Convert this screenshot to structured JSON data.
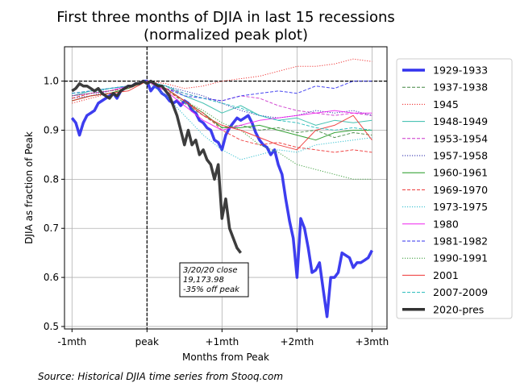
{
  "chart_data": {
    "type": "line",
    "title_line1": "First three months of DJIA in last 15 recessions",
    "title_line2": "(normalized peak plot)",
    "xlabel": "Months from Peak",
    "ylabel": "DJIA as fraction of Peak",
    "xlim": [
      -1.1,
      3.2
    ],
    "ylim": [
      0.495,
      1.07
    ],
    "xticks": [
      -1,
      0,
      1,
      2,
      3
    ],
    "xtick_labels": [
      "-1mth",
      "peak",
      "+1mth",
      "+2mth",
      "+3mth"
    ],
    "yticks": [
      0.5,
      0.6,
      0.7,
      0.8,
      0.9,
      1.0
    ],
    "ytick_labels": [
      "0.5",
      "0.6",
      "0.7",
      "0.8",
      "0.9",
      "1.0"
    ],
    "grid": true,
    "reference_lines": {
      "horizontal_y": 1.0,
      "vertical_x": 0
    },
    "legend_position": "right",
    "annotation": {
      "lines": [
        "3/20/20 close",
        "19,173.98",
        "-35% off peak"
      ],
      "anchor_x": 0.4,
      "anchor_y": 0.63
    },
    "source": "Source: Historical DJIA time series from Stooq.com",
    "series": [
      {
        "name": "1929-1933",
        "color": "#3333ee",
        "style": "solid",
        "width": 3.5,
        "x": [
          -1.0,
          -0.95,
          -0.9,
          -0.85,
          -0.8,
          -0.75,
          -0.7,
          -0.65,
          -0.6,
          -0.55,
          -0.5,
          -0.45,
          -0.4,
          -0.35,
          -0.3,
          -0.25,
          -0.2,
          -0.15,
          -0.1,
          -0.05,
          0.0,
          0.05,
          0.1,
          0.15,
          0.2,
          0.25,
          0.3,
          0.35,
          0.4,
          0.45,
          0.5,
          0.55,
          0.6,
          0.65,
          0.7,
          0.75,
          0.8,
          0.85,
          0.9,
          0.95,
          1.0,
          1.05,
          1.1,
          1.15,
          1.2,
          1.25,
          1.3,
          1.35,
          1.4,
          1.45,
          1.5,
          1.55,
          1.6,
          1.65,
          1.7,
          1.75,
          1.8,
          1.85,
          1.9,
          1.95,
          2.0,
          2.05,
          2.1,
          2.15,
          2.2,
          2.25,
          2.3,
          2.35,
          2.4,
          2.45,
          2.5,
          2.55,
          2.6,
          2.65,
          2.7,
          2.75,
          2.8,
          2.85,
          2.9,
          2.95,
          3.0
        ],
        "y": [
          0.925,
          0.915,
          0.89,
          0.915,
          0.93,
          0.935,
          0.94,
          0.955,
          0.96,
          0.965,
          0.97,
          0.975,
          0.965,
          0.98,
          0.985,
          0.99,
          0.99,
          0.995,
          0.995,
          1.0,
          1.0,
          0.98,
          0.99,
          0.985,
          0.975,
          0.97,
          0.96,
          0.955,
          0.96,
          0.95,
          0.96,
          0.955,
          0.94,
          0.935,
          0.92,
          0.915,
          0.905,
          0.9,
          0.88,
          0.875,
          0.86,
          0.89,
          0.905,
          0.915,
          0.925,
          0.92,
          0.925,
          0.93,
          0.915,
          0.895,
          0.88,
          0.87,
          0.865,
          0.85,
          0.86,
          0.83,
          0.81,
          0.76,
          0.715,
          0.68,
          0.6,
          0.72,
          0.7,
          0.66,
          0.61,
          0.615,
          0.63,
          0.575,
          0.52,
          0.6,
          0.6,
          0.61,
          0.65,
          0.645,
          0.64,
          0.62,
          0.63,
          0.63,
          0.635,
          0.64,
          0.655
        ]
      },
      {
        "name": "1937-1938",
        "color": "#448844",
        "style": "dashed",
        "width": 1,
        "x": [
          -1.0,
          -0.75,
          -0.5,
          -0.25,
          0.0,
          0.25,
          0.5,
          0.75,
          1.0,
          1.25,
          1.5,
          1.75,
          2.0,
          2.25,
          2.5,
          2.75,
          3.0
        ],
        "y": [
          0.96,
          0.97,
          0.975,
          0.985,
          1.0,
          0.985,
          0.955,
          0.93,
          0.905,
          0.91,
          0.9,
          0.905,
          0.895,
          0.9,
          0.885,
          0.895,
          0.89
        ]
      },
      {
        "name": "1945",
        "color": "#ee2222",
        "style": "dotted",
        "width": 1,
        "x": [
          -1.0,
          -0.75,
          -0.5,
          -0.25,
          0.0,
          0.25,
          0.5,
          0.75,
          1.0,
          1.25,
          1.5,
          1.75,
          2.0,
          2.25,
          2.5,
          2.75,
          3.0
        ],
        "y": [
          0.955,
          0.965,
          0.975,
          0.985,
          1.0,
          0.995,
          0.985,
          0.99,
          1.0,
          1.005,
          1.01,
          1.02,
          1.03,
          1.03,
          1.035,
          1.045,
          1.04
        ]
      },
      {
        "name": "1948-1949",
        "color": "#33bbaa",
        "style": "solid",
        "width": 1,
        "x": [
          -1.0,
          -0.75,
          -0.5,
          -0.25,
          0.0,
          0.25,
          0.5,
          0.75,
          1.0,
          1.25,
          1.5,
          1.75,
          2.0,
          2.25,
          2.5,
          2.75,
          3.0
        ],
        "y": [
          0.97,
          0.98,
          0.985,
          0.99,
          1.0,
          0.99,
          0.97,
          0.955,
          0.935,
          0.95,
          0.93,
          0.92,
          0.925,
          0.91,
          0.92,
          0.915,
          0.92
        ]
      },
      {
        "name": "1953-1954",
        "color": "#cc33cc",
        "style": "dashed",
        "width": 1,
        "x": [
          -1.0,
          -0.75,
          -0.5,
          -0.25,
          0.0,
          0.25,
          0.5,
          0.75,
          1.0,
          1.25,
          1.5,
          1.75,
          2.0,
          2.25,
          2.5,
          2.75,
          3.0
        ],
        "y": [
          0.975,
          0.98,
          0.985,
          0.99,
          1.0,
          0.985,
          0.975,
          0.965,
          0.96,
          0.97,
          0.965,
          0.95,
          0.94,
          0.935,
          0.93,
          0.935,
          0.93
        ]
      },
      {
        "name": "1957-1958",
        "color": "#2222aa",
        "style": "dotted",
        "width": 1,
        "x": [
          -1.0,
          -0.75,
          -0.5,
          -0.25,
          0.0,
          0.25,
          0.5,
          0.75,
          1.0,
          1.25,
          1.5,
          1.75,
          2.0,
          2.25,
          2.5,
          2.75,
          3.0
        ],
        "y": [
          0.965,
          0.97,
          0.98,
          0.99,
          1.0,
          0.99,
          0.98,
          0.97,
          0.955,
          0.94,
          0.93,
          0.925,
          0.93,
          0.94,
          0.935,
          0.94,
          0.93
        ]
      },
      {
        "name": "1960-1961",
        "color": "#229922",
        "style": "solid",
        "width": 1,
        "x": [
          -1.0,
          -0.75,
          -0.5,
          -0.25,
          0.0,
          0.25,
          0.5,
          0.75,
          1.0,
          1.25,
          1.5,
          1.75,
          2.0,
          2.25,
          2.5,
          2.75,
          3.0
        ],
        "y": [
          0.96,
          0.97,
          0.975,
          0.985,
          1.0,
          0.985,
          0.96,
          0.935,
          0.905,
          0.905,
          0.91,
          0.9,
          0.89,
          0.88,
          0.895,
          0.9,
          0.9
        ]
      },
      {
        "name": "1969-1970",
        "color": "#ee3333",
        "style": "dashed",
        "width": 1,
        "x": [
          -1.0,
          -0.75,
          -0.5,
          -0.25,
          0.0,
          0.25,
          0.5,
          0.75,
          1.0,
          1.25,
          1.5,
          1.75,
          2.0,
          2.25,
          2.5,
          2.75,
          3.0
        ],
        "y": [
          0.965,
          0.975,
          0.98,
          0.985,
          1.0,
          0.98,
          0.96,
          0.935,
          0.9,
          0.88,
          0.87,
          0.875,
          0.865,
          0.86,
          0.855,
          0.86,
          0.855
        ]
      },
      {
        "name": "1973-1975",
        "color": "#22bbcc",
        "style": "dotted",
        "width": 1,
        "x": [
          -1.0,
          -0.75,
          -0.5,
          -0.25,
          0.0,
          0.25,
          0.5,
          0.75,
          1.0,
          1.25,
          1.5,
          1.75,
          2.0,
          2.25,
          2.5,
          2.75,
          3.0
        ],
        "y": [
          0.97,
          0.975,
          0.985,
          0.99,
          1.0,
          0.97,
          0.93,
          0.89,
          0.86,
          0.84,
          0.85,
          0.86,
          0.855,
          0.87,
          0.875,
          0.88,
          0.885
        ]
      },
      {
        "name": "1980",
        "color": "#ee22ee",
        "style": "solid",
        "width": 1,
        "x": [
          -1.0,
          -0.75,
          -0.5,
          -0.25,
          0.0,
          0.25,
          0.5,
          0.75,
          1.0,
          1.25,
          1.5,
          1.75,
          2.0,
          2.25,
          2.5,
          2.75,
          3.0
        ],
        "y": [
          0.97,
          0.975,
          0.98,
          0.99,
          1.0,
          0.98,
          0.95,
          0.92,
          0.9,
          0.91,
          0.92,
          0.925,
          0.93,
          0.935,
          0.94,
          0.935,
          0.935
        ]
      },
      {
        "name": "1981-1982",
        "color": "#3333ee",
        "style": "dashed",
        "width": 1,
        "x": [
          -1.0,
          -0.75,
          -0.5,
          -0.25,
          0.0,
          0.25,
          0.5,
          0.75,
          1.0,
          1.25,
          1.5,
          1.75,
          2.0,
          2.25,
          2.5,
          2.75,
          3.0
        ],
        "y": [
          0.975,
          0.98,
          0.985,
          0.99,
          1.0,
          0.985,
          0.97,
          0.965,
          0.96,
          0.97,
          0.975,
          0.98,
          0.975,
          0.99,
          0.985,
          1.0,
          1.0
        ]
      },
      {
        "name": "1990-1991",
        "color": "#339933",
        "style": "dotted",
        "width": 1,
        "x": [
          -1.0,
          -0.75,
          -0.5,
          -0.25,
          0.0,
          0.25,
          0.5,
          0.75,
          1.0,
          1.25,
          1.5,
          1.75,
          2.0,
          2.25,
          2.5,
          2.75,
          3.0
        ],
        "y": [
          0.97,
          0.975,
          0.98,
          0.985,
          1.0,
          0.985,
          0.96,
          0.94,
          0.915,
          0.9,
          0.87,
          0.855,
          0.83,
          0.82,
          0.81,
          0.8,
          0.8
        ]
      },
      {
        "name": "2001",
        "color": "#ee3333",
        "style": "solid",
        "width": 1,
        "x": [
          -1.0,
          -0.75,
          -0.5,
          -0.25,
          0.0,
          0.25,
          0.5,
          0.75,
          1.0,
          1.25,
          1.5,
          1.75,
          2.0,
          2.25,
          2.5,
          2.75,
          3.0
        ],
        "y": [
          0.96,
          0.97,
          0.975,
          0.98,
          1.0,
          0.985,
          0.96,
          0.93,
          0.91,
          0.9,
          0.885,
          0.87,
          0.86,
          0.9,
          0.91,
          0.93,
          0.88
        ]
      },
      {
        "name": "2007-2009",
        "color": "#22bbbb",
        "style": "dashed",
        "width": 1,
        "x": [
          -1.0,
          -0.75,
          -0.5,
          -0.25,
          0.0,
          0.25,
          0.5,
          0.75,
          1.0,
          1.25,
          1.5,
          1.75,
          2.0,
          2.25,
          2.5,
          2.75,
          3.0
        ],
        "y": [
          0.975,
          0.98,
          0.985,
          0.99,
          1.0,
          0.99,
          0.975,
          0.965,
          0.955,
          0.945,
          0.93,
          0.92,
          0.915,
          0.905,
          0.9,
          0.905,
          0.9
        ]
      },
      {
        "name": "2020-pres",
        "color": "#333333",
        "style": "solid",
        "width": 3.5,
        "x": [
          -1.0,
          -0.95,
          -0.9,
          -0.85,
          -0.8,
          -0.75,
          -0.7,
          -0.65,
          -0.6,
          -0.55,
          -0.5,
          -0.45,
          -0.4,
          -0.35,
          -0.3,
          -0.25,
          -0.2,
          -0.15,
          -0.1,
          -0.05,
          0.0,
          0.05,
          0.1,
          0.15,
          0.2,
          0.25,
          0.3,
          0.35,
          0.4,
          0.45,
          0.5,
          0.55,
          0.6,
          0.65,
          0.7,
          0.75,
          0.8,
          0.85,
          0.9,
          0.95,
          1.0,
          1.05,
          1.1,
          1.15,
          1.2,
          1.25
        ],
        "y": [
          0.98,
          0.985,
          0.995,
          0.99,
          0.99,
          0.985,
          0.98,
          0.985,
          0.975,
          0.97,
          0.965,
          0.975,
          0.97,
          0.98,
          0.985,
          0.99,
          0.99,
          0.995,
          0.995,
          1.0,
          0.995,
          1.0,
          0.995,
          0.99,
          0.99,
          0.98,
          0.97,
          0.95,
          0.93,
          0.9,
          0.87,
          0.9,
          0.87,
          0.88,
          0.85,
          0.86,
          0.84,
          0.83,
          0.8,
          0.83,
          0.72,
          0.76,
          0.7,
          0.68,
          0.66,
          0.65
        ]
      }
    ]
  }
}
